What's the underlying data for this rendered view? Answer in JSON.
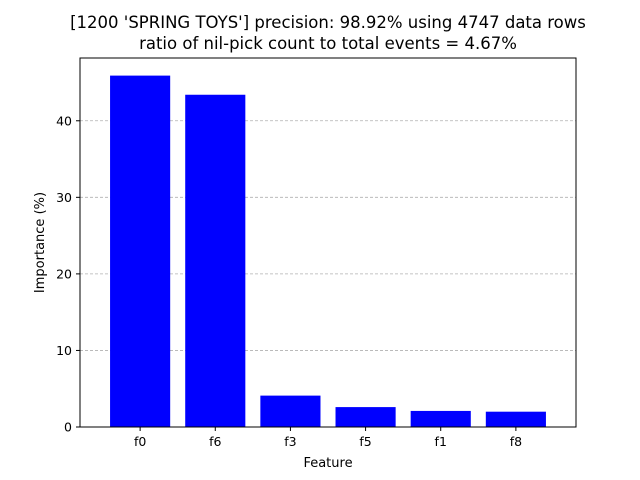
{
  "chart_data": {
    "type": "bar",
    "title_line1": "[1200 'SPRING TOYS'] precision: 98.92% using 4747 data rows",
    "title_line2": "ratio of nil-pick count to total events = 4.67%",
    "xlabel": "Feature",
    "ylabel": "Importance (%)",
    "categories": [
      "f0",
      "f6",
      "f3",
      "f5",
      "f1",
      "f8"
    ],
    "values": [
      45.9,
      43.4,
      4.1,
      2.6,
      2.1,
      2.0
    ],
    "ylim": [
      0,
      48.2
    ],
    "yticks": [
      0,
      10,
      20,
      30,
      40
    ],
    "grid": "y-dashed",
    "bar_color": "#0000ff",
    "grid_color": "#b0b0b0"
  }
}
